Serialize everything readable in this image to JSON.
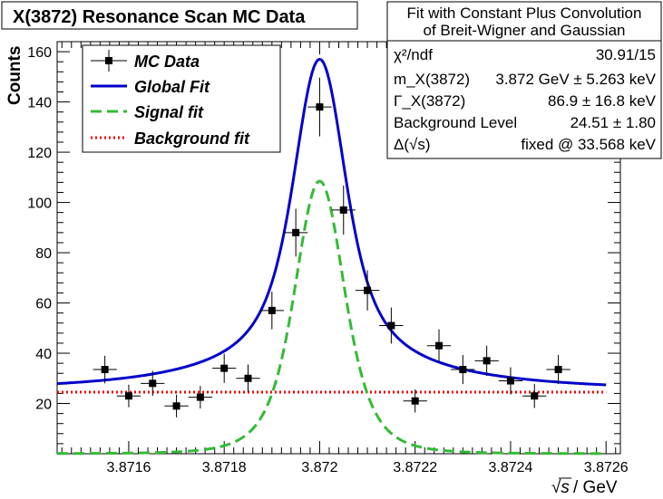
{
  "chart_data": {
    "type": "scatter",
    "title": "X(3872) Resonance Scan MC Data",
    "xlabel_sym": "√s",
    "xlabel_unit": "/ GeV",
    "ylabel": "Counts",
    "xlim": [
      3.87145,
      3.87263
    ],
    "ylim": [
      0,
      164
    ],
    "x_ticks": [
      3.8716,
      3.8718,
      3.872,
      3.8722,
      3.8724,
      3.8726
    ],
    "x_tick_labels": [
      "3.8716",
      "3.8718",
      "3.872",
      "3.8722",
      "3.8724",
      "3.8726"
    ],
    "y_ticks": [
      20,
      40,
      60,
      80,
      100,
      120,
      140,
      160
    ],
    "y_tick_labels": [
      "20",
      "40",
      "60",
      "80",
      "100",
      "120",
      "140",
      "160"
    ],
    "legend": {
      "position": "top-left",
      "entries": [
        {
          "label": "MC Data",
          "style": "marker",
          "color": "#000000"
        },
        {
          "label": "Global Fit",
          "style": "solid",
          "color": "#0000cc"
        },
        {
          "label": "Signal fit",
          "style": "dashed",
          "color": "#33bb33"
        },
        {
          "label": "Background fit",
          "style": "dotted",
          "color": "#ee0000"
        }
      ]
    },
    "data": {
      "name": "MC Data",
      "x_err": 4.5e-06,
      "points": [
        {
          "x": 3.87155,
          "y": 33.5,
          "yerr": 5.5
        },
        {
          "x": 3.8716,
          "y": 23.0,
          "yerr": 4.5
        },
        {
          "x": 3.87165,
          "y": 28.0,
          "yerr": 5.0
        },
        {
          "x": 3.8717,
          "y": 19.0,
          "yerr": 4.5
        },
        {
          "x": 3.87175,
          "y": 22.5,
          "yerr": 4.5
        },
        {
          "x": 3.8718,
          "y": 34.0,
          "yerr": 5.8
        },
        {
          "x": 3.87185,
          "y": 30.0,
          "yerr": 5.5
        },
        {
          "x": 3.8719,
          "y": 57.0,
          "yerr": 7.5
        },
        {
          "x": 3.87195,
          "y": 88.0,
          "yerr": 9.5
        },
        {
          "x": 3.872,
          "y": 138.0,
          "yerr": 11.7
        },
        {
          "x": 3.87205,
          "y": 97.0,
          "yerr": 9.8
        },
        {
          "x": 3.8721,
          "y": 65.0,
          "yerr": 8.0
        },
        {
          "x": 3.87215,
          "y": 51.0,
          "yerr": 7.2
        },
        {
          "x": 3.8722,
          "y": 21.0,
          "yerr": 4.6
        },
        {
          "x": 3.87225,
          "y": 43.0,
          "yerr": 6.5
        },
        {
          "x": 3.8723,
          "y": 33.5,
          "yerr": 5.8
        },
        {
          "x": 3.87235,
          "y": 37.0,
          "yerr": 6.0
        },
        {
          "x": 3.8724,
          "y": 29.0,
          "yerr": 5.4
        },
        {
          "x": 3.87245,
          "y": 23.0,
          "yerr": 4.8
        },
        {
          "x": 3.8725,
          "y": 33.5,
          "yerr": 5.8
        }
      ]
    },
    "fit": {
      "mass": 3.872,
      "background": 24.51,
      "signal_peak": 108.5,
      "signal_width": 8.7e-05,
      "curve_x_range": [
        3.87145,
        3.8726
      ]
    }
  },
  "stats_box": {
    "title_line1": "Fit with Constant Plus Convolution",
    "title_line2": "of Breit-Wigner and Gaussian",
    "rows": [
      {
        "label": "χ²/ndf",
        "value": "30.91/15"
      },
      {
        "label": "m_X(3872)",
        "value": "3.872 GeV ± 5.263 keV"
      },
      {
        "label": "Γ_X(3872)",
        "value": "86.9 ± 16.8  keV"
      },
      {
        "label": "Background Level",
        "value": "24.51 ± 1.80"
      },
      {
        "label": "Δ(√s)",
        "value": "fixed @ 33.568  keV"
      }
    ]
  },
  "colors": {
    "global_fit": "#0000cc",
    "signal_fit": "#33bb33",
    "background_fit": "#ee0000",
    "data": "#000000"
  }
}
